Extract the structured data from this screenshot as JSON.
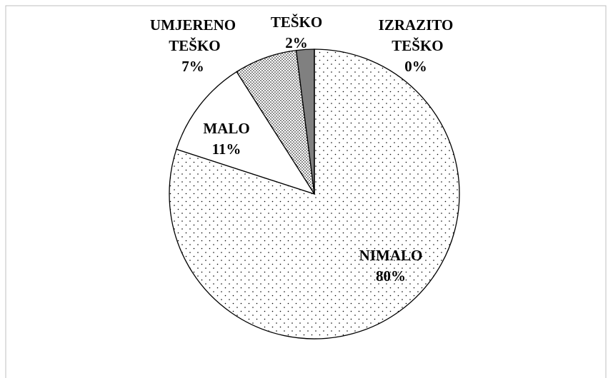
{
  "chart_data": {
    "type": "pie",
    "categories": [
      "NIMALO",
      "MALO",
      "UMJERENO TEŠKO",
      "TEŠKO",
      "IZRAZITO TEŠKO"
    ],
    "values": [
      80,
      11,
      7,
      2,
      0
    ],
    "value_labels": [
      "80%",
      "11%",
      "7%",
      "2%",
      "0%"
    ],
    "colors": [
      "#ffffff",
      "#ffffff",
      "#ffffff",
      "#808080",
      "#000000"
    ],
    "patterns": [
      "sparse-dots",
      null,
      "dense-dots",
      null,
      null
    ]
  }
}
